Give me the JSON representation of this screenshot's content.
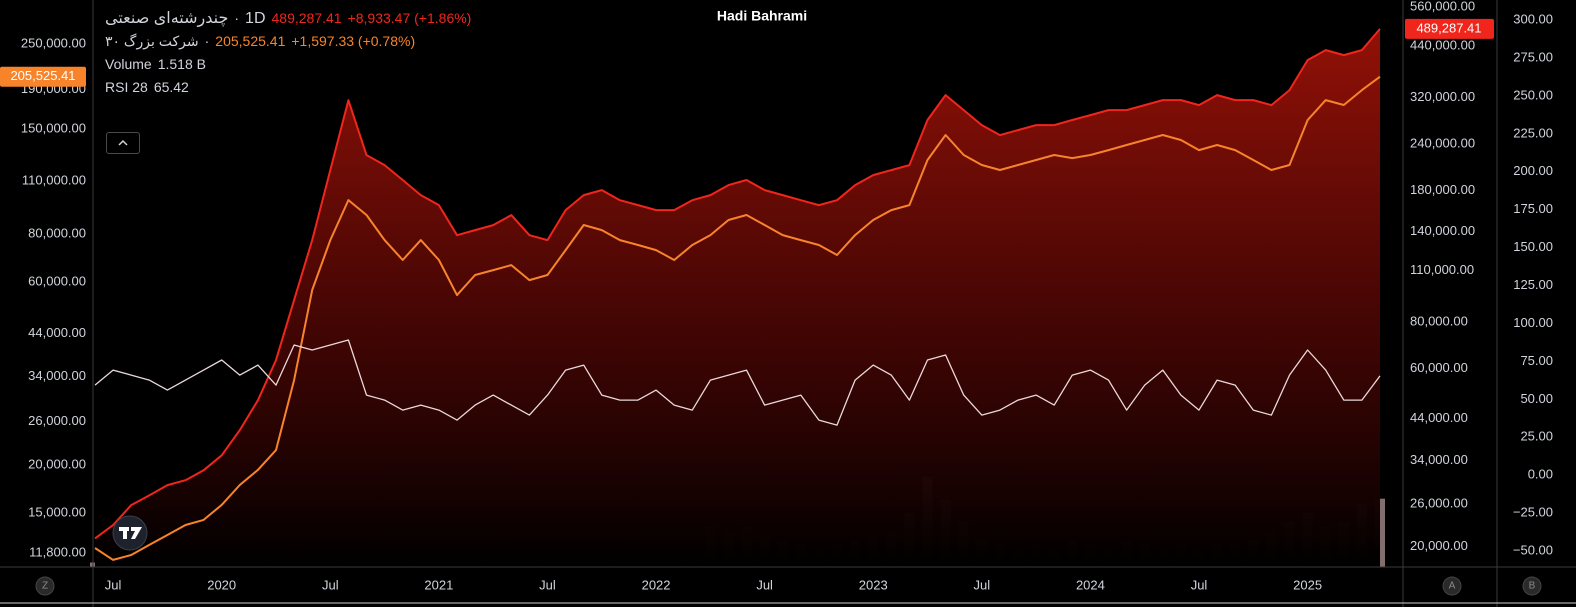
{
  "chart_data": {
    "type": "line",
    "title": "Hadi Bahrami",
    "interval": "1D",
    "separator": "·",
    "log_scale": true,
    "grid": false,
    "x": [
      "2019-06",
      "2019-07",
      "2019-08",
      "2019-09",
      "2019-10",
      "2019-11",
      "2019-12",
      "2020-01",
      "2020-02",
      "2020-03",
      "2020-04",
      "2020-05",
      "2020-06",
      "2020-07",
      "2020-08",
      "2020-09",
      "2020-10",
      "2020-11",
      "2020-12",
      "2021-01",
      "2021-02",
      "2021-03",
      "2021-04",
      "2021-05",
      "2021-06",
      "2021-07",
      "2021-08",
      "2021-09",
      "2021-10",
      "2021-11",
      "2021-12",
      "2022-01",
      "2022-02",
      "2022-03",
      "2022-04",
      "2022-05",
      "2022-06",
      "2022-07",
      "2022-08",
      "2022-09",
      "2022-10",
      "2022-11",
      "2022-12",
      "2023-01",
      "2023-02",
      "2023-03",
      "2023-04",
      "2023-05",
      "2023-06",
      "2023-07",
      "2023-08",
      "2023-09",
      "2023-10",
      "2023-11",
      "2023-12",
      "2024-01",
      "2024-02",
      "2024-03",
      "2024-04",
      "2024-05",
      "2024-06",
      "2024-07",
      "2024-08",
      "2024-09",
      "2024-10",
      "2024-11",
      "2024-12",
      "2025-01",
      "2025-02",
      "2025-03",
      "2025-04",
      "2025-05"
    ],
    "xticks": [
      {
        "value": "2019-07",
        "label": "Jul"
      },
      {
        "value": "2020-01",
        "label": "2020"
      },
      {
        "value": "2020-07",
        "label": "Jul"
      },
      {
        "value": "2021-01",
        "label": "2021"
      },
      {
        "value": "2021-07",
        "label": "Jul"
      },
      {
        "value": "2022-01",
        "label": "2022"
      },
      {
        "value": "2022-07",
        "label": "Jul"
      },
      {
        "value": "2023-01",
        "label": "2023"
      },
      {
        "value": "2023-07",
        "label": "Jul"
      },
      {
        "value": "2024-01",
        "label": "2024"
      },
      {
        "value": "2024-07",
        "label": "Jul"
      },
      {
        "value": "2025-01",
        "label": "2025"
      }
    ],
    "ylim": [
      10850,
      325600
    ],
    "yticks": [
      {
        "value": 250000,
        "label": "250,000.00"
      },
      {
        "value": 190000,
        "label": "190,000.00"
      },
      {
        "value": 150000,
        "label": "150,000.00"
      },
      {
        "value": 110000,
        "label": "110,000.00"
      },
      {
        "value": 80000,
        "label": "80,000.00"
      },
      {
        "value": 60000,
        "label": "60,000.00"
      },
      {
        "value": 44000,
        "label": "44,000.00"
      },
      {
        "value": 34000,
        "label": "34,000.00"
      },
      {
        "value": 26000,
        "label": "26,000.00"
      },
      {
        "value": 20000,
        "label": "20,000.00"
      },
      {
        "value": 15000,
        "label": "15,000.00"
      },
      {
        "value": 11800,
        "label": "11,800.00"
      }
    ],
    "y2lim": [
      17600,
      585000
    ],
    "y2ticks": [
      {
        "value": 560000,
        "label": "560,000.00"
      },
      {
        "value": 440000,
        "label": "440,000.00"
      },
      {
        "value": 320000,
        "label": "320,000.00"
      },
      {
        "value": 240000,
        "label": "240,000.00"
      },
      {
        "value": 180000,
        "label": "180,000.00"
      },
      {
        "value": 140000,
        "label": "140,000.00"
      },
      {
        "value": 110000,
        "label": "110,000.00"
      },
      {
        "value": 80000,
        "label": "80,000.00"
      },
      {
        "value": 60000,
        "label": "60,000.00"
      },
      {
        "value": 44000,
        "label": "44,000.00"
      },
      {
        "value": 34000,
        "label": "34,000.00"
      },
      {
        "value": 26000,
        "label": "26,000.00"
      },
      {
        "value": 20000,
        "label": "20,000.00"
      }
    ],
    "y3lim": [
      -60.5,
      313.2
    ],
    "y3ticks": [
      {
        "value": 300,
        "label": "300.00"
      },
      {
        "value": 275,
        "label": "275.00"
      },
      {
        "value": 250,
        "label": "250.00"
      },
      {
        "value": 225,
        "label": "225.00"
      },
      {
        "value": 200,
        "label": "200.00"
      },
      {
        "value": 175,
        "label": "175.00"
      },
      {
        "value": 150,
        "label": "150.00"
      },
      {
        "value": 125,
        "label": "125.00"
      },
      {
        "value": 100,
        "label": "100.00"
      },
      {
        "value": 75,
        "label": "75.00"
      },
      {
        "value": 50,
        "label": "50.00"
      },
      {
        "value": 25,
        "label": "25.00"
      },
      {
        "value": 0,
        "label": "0.00"
      },
      {
        "value": -25,
        "label": "−25.00"
      },
      {
        "value": -50,
        "label": "−50.00"
      }
    ],
    "series": [
      {
        "name": "چندرشته‌ای صنعتی",
        "color": "#f0261c",
        "axis": "y2",
        "last_label": "489,287.41",
        "change": "+8,933.47 (+1.86%)",
        "values": [
          21000,
          22800,
          25800,
          27400,
          29200,
          30100,
          32000,
          35100,
          41000,
          49300,
          63200,
          91600,
          132700,
          204500,
          315000,
          224300,
          210900,
          192300,
          175200,
          164700,
          136800,
          141100,
          145600,
          154800,
          136800,
          132700,
          159700,
          175200,
          180700,
          169800,
          164700,
          159700,
          159700,
          169800,
          175200,
          186400,
          192300,
          180700,
          175200,
          169800,
          164700,
          169800,
          186400,
          198300,
          204500,
          210900,
          278600,
          325100,
          296200,
          270100,
          253900,
          261900,
          270100,
          270100,
          278600,
          287300,
          296200,
          296200,
          305500,
          315200,
          315200,
          305500,
          325100,
          315200,
          315200,
          305500,
          335300,
          403500,
          429300,
          416200,
          429300,
          489287.41
        ]
      },
      {
        "name": "شرکت بزرگ ۳۰",
        "color": "#f7842a",
        "axis": "y",
        "last_label": "205,525.41",
        "change": "+1,597.33 (+0.78%)",
        "values": [
          12160,
          11320,
          11660,
          12390,
          13150,
          13960,
          14390,
          15750,
          17750,
          19430,
          21880,
          33300,
          57150,
          77130,
          98050,
          89630,
          77130,
          68430,
          77130,
          68430,
          55450,
          62530,
          64430,
          66390,
          60680,
          62530,
          72640,
          84400,
          81900,
          77130,
          74860,
          72640,
          68430,
          74860,
          79480,
          86970,
          89630,
          84400,
          79480,
          77130,
          74860,
          70500,
          79480,
          86970,
          92330,
          95140,
          124650,
          144830,
          128450,
          120980,
          117400,
          120980,
          124650,
          128450,
          126150,
          128450,
          132350,
          136400,
          140550,
          144830,
          140550,
          132350,
          136400,
          132350,
          124650,
          117400,
          120980,
          158450,
          178650,
          173380,
          189700,
          205525.41
        ]
      },
      {
        "name": "RSI 28",
        "color": "#ead9d9",
        "axis": "y3",
        "values": [
          59.4,
          69.3,
          66.0,
          62.7,
          56.1,
          62.7,
          69.3,
          75.9,
          66.0,
          72.6,
          59.4,
          85.8,
          82.5,
          85.8,
          89.1,
          52.8,
          49.5,
          42.9,
          46.2,
          42.9,
          36.3,
          46.2,
          52.8,
          46.2,
          39.6,
          52.8,
          69.3,
          72.6,
          52.8,
          49.5,
          49.5,
          56.1,
          46.2,
          42.9,
          62.7,
          66.0,
          69.3,
          46.2,
          49.5,
          52.8,
          36.3,
          33.0,
          62.7,
          72.6,
          66.0,
          49.5,
          75.9,
          79.2,
          52.8,
          39.6,
          42.9,
          49.5,
          52.8,
          46.2,
          66.0,
          69.3,
          62.7,
          42.9,
          59.4,
          69.3,
          52.8,
          42.9,
          62.7,
          59.4,
          42.9,
          39.6,
          66.0,
          82.5,
          69.3,
          49.5,
          49.5,
          65.42
        ]
      }
    ],
    "volume": {
      "name": "Volume",
      "color": "#ecc9c9",
      "last_label": "1.518 B",
      "values": [
        0.1,
        0.12,
        0.1,
        0.11,
        0.12,
        0.1,
        0.13,
        0.12,
        0.14,
        0.15,
        0.2,
        0.25,
        0.3,
        0.22,
        0.2,
        0.15,
        0.12,
        0.1,
        0.12,
        0.25,
        0.2,
        0.15,
        0.12,
        0.1,
        0.1,
        0.12,
        0.1,
        0.12,
        0.1,
        0.1,
        0.12,
        0.11,
        0.1,
        0.1,
        0.9,
        0.8,
        0.9,
        0.7,
        0.6,
        0.5,
        0.4,
        0.5,
        0.6,
        0.7,
        0.8,
        1.2,
        2.0,
        1.5,
        1.0,
        0.6,
        0.5,
        0.4,
        0.5,
        0.4,
        0.6,
        0.5,
        0.4,
        0.6,
        0.5,
        0.4,
        0.5,
        0.4,
        0.5,
        0.5,
        0.6,
        0.8,
        1.0,
        1.2,
        0.9,
        1.0,
        1.4,
        1.518
      ]
    }
  },
  "scale_buttons": [
    "Z",
    "A",
    "B"
  ]
}
